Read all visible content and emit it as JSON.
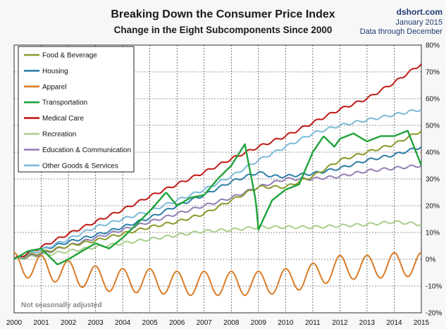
{
  "chart_data": {
    "type": "line",
    "title": "Breaking Down the Consumer Price Index",
    "subtitle": "Change in the Eight Subcomponents  Since 2000",
    "source": {
      "site": "dshort.com",
      "date": "January 2015",
      "note": "Data through December"
    },
    "annotation": "Not seasonally adjusted",
    "xlabel": "",
    "ylabel": "",
    "x_ticks": [
      "2000",
      "2001",
      "2002",
      "2003",
      "2004",
      "2005",
      "2006",
      "2007",
      "2008",
      "2009",
      "2010",
      "2011",
      "2012",
      "2013",
      "2014",
      "2015"
    ],
    "y_ticks": [
      "80%",
      "70%",
      "60%",
      "50%",
      "40%",
      "30%",
      "20%",
      "10%",
      "0%",
      "-10%",
      "-20%"
    ],
    "ylim": [
      -20,
      80
    ],
    "xlim": [
      2000,
      2015
    ],
    "grid": true,
    "legend_position": "top-left",
    "series": [
      {
        "name": "Food & Beverage",
        "color": "#8a9a2a",
        "points": [
          [
            2000,
            0
          ],
          [
            2001,
            2.5
          ],
          [
            2002,
            5
          ],
          [
            2003,
            7
          ],
          [
            2004,
            9.5
          ],
          [
            2005,
            12
          ],
          [
            2006,
            14
          ],
          [
            2007,
            17
          ],
          [
            2008,
            22
          ],
          [
            2009,
            27
          ],
          [
            2009.5,
            27
          ],
          [
            2010,
            27
          ],
          [
            2011,
            31
          ],
          [
            2012,
            37
          ],
          [
            2013,
            40
          ],
          [
            2014,
            43
          ],
          [
            2015,
            48
          ]
        ]
      },
      {
        "name": "Housing",
        "color": "#2c7fa8",
        "points": [
          [
            2000,
            0
          ],
          [
            2001,
            3.5
          ],
          [
            2002,
            6.5
          ],
          [
            2003,
            9
          ],
          [
            2004,
            12
          ],
          [
            2005,
            15.5
          ],
          [
            2006,
            20
          ],
          [
            2007,
            24
          ],
          [
            2008,
            29
          ],
          [
            2009,
            32.5
          ],
          [
            2009.5,
            31
          ],
          [
            2010,
            31
          ],
          [
            2011,
            32
          ],
          [
            2012,
            34
          ],
          [
            2013,
            37
          ],
          [
            2014,
            39
          ],
          [
            2015,
            42
          ]
        ]
      },
      {
        "name": "Apparel",
        "color": "#d97b27",
        "oscillation": "seasonal",
        "points": [
          [
            2000,
            -2
          ],
          [
            2001,
            -3
          ],
          [
            2002,
            -5
          ],
          [
            2003,
            -7
          ],
          [
            2004,
            -8
          ],
          [
            2005,
            -8
          ],
          [
            2006,
            -9
          ],
          [
            2007,
            -9
          ],
          [
            2008,
            -9
          ],
          [
            2009,
            -9
          ],
          [
            2010,
            -8
          ],
          [
            2011,
            -6
          ],
          [
            2012,
            -3
          ],
          [
            2013,
            -3
          ],
          [
            2014,
            -2
          ],
          [
            2015,
            -2
          ]
        ]
      },
      {
        "name": "Transportation",
        "color": "#1fa33a",
        "points": [
          [
            2000,
            0
          ],
          [
            2000.5,
            3
          ],
          [
            2001,
            4
          ],
          [
            2001.6,
            -2
          ],
          [
            2002,
            0
          ],
          [
            2002.5,
            3
          ],
          [
            2003,
            6
          ],
          [
            2003.5,
            4
          ],
          [
            2004,
            8
          ],
          [
            2004.5,
            13
          ],
          [
            2005,
            18
          ],
          [
            2005.6,
            25
          ],
          [
            2006,
            20
          ],
          [
            2006.5,
            23
          ],
          [
            2007,
            24
          ],
          [
            2007.5,
            30
          ],
          [
            2008,
            35
          ],
          [
            2008.5,
            43
          ],
          [
            2008.9,
            22
          ],
          [
            2009,
            11
          ],
          [
            2009.5,
            22
          ],
          [
            2010,
            26
          ],
          [
            2010.5,
            28
          ],
          [
            2011,
            40
          ],
          [
            2011.4,
            46
          ],
          [
            2011.8,
            42
          ],
          [
            2012,
            45
          ],
          [
            2012.5,
            47
          ],
          [
            2013,
            44
          ],
          [
            2013.5,
            46
          ],
          [
            2014,
            46
          ],
          [
            2014.5,
            48
          ],
          [
            2015,
            35
          ]
        ]
      },
      {
        "name": "Medical Care",
        "color": "#c01a16",
        "points": [
          [
            2000,
            0
          ],
          [
            2001,
            4.5
          ],
          [
            2002,
            9.5
          ],
          [
            2003,
            14
          ],
          [
            2004,
            18.5
          ],
          [
            2005,
            23.5
          ],
          [
            2006,
            28
          ],
          [
            2007,
            32.5
          ],
          [
            2008,
            37.5
          ],
          [
            2009,
            42
          ],
          [
            2010,
            46
          ],
          [
            2011,
            51
          ],
          [
            2012,
            56
          ],
          [
            2013,
            60
          ],
          [
            2014,
            66
          ],
          [
            2015,
            73
          ]
        ]
      },
      {
        "name": "Recreation",
        "color": "#a8cf8b",
        "points": [
          [
            2000,
            0
          ],
          [
            2001,
            1.5
          ],
          [
            2002,
            3
          ],
          [
            2003,
            4.5
          ],
          [
            2004,
            6
          ],
          [
            2005,
            7.5
          ],
          [
            2006,
            9
          ],
          [
            2007,
            10.5
          ],
          [
            2008,
            11
          ],
          [
            2009,
            12
          ],
          [
            2010,
            12
          ],
          [
            2011,
            12
          ],
          [
            2012,
            12.5
          ],
          [
            2013,
            13
          ],
          [
            2014,
            14
          ],
          [
            2015,
            13
          ]
        ]
      },
      {
        "name": "Education & Communication",
        "color": "#9580b5",
        "points": [
          [
            2000,
            0
          ],
          [
            2001,
            2
          ],
          [
            2002,
            5
          ],
          [
            2003,
            8
          ],
          [
            2004,
            11
          ],
          [
            2005,
            14
          ],
          [
            2006,
            17
          ],
          [
            2007,
            20
          ],
          [
            2008,
            23
          ],
          [
            2009,
            27
          ],
          [
            2010,
            30
          ],
          [
            2011,
            30
          ],
          [
            2012,
            31
          ],
          [
            2013,
            33
          ],
          [
            2014,
            34
          ],
          [
            2015,
            35
          ]
        ]
      },
      {
        "name": "Other Goods & Services",
        "color": "#7bbad8",
        "points": [
          [
            2000,
            0
          ],
          [
            2001,
            3.5
          ],
          [
            2002,
            7.5
          ],
          [
            2003,
            12
          ],
          [
            2004,
            15
          ],
          [
            2005,
            18
          ],
          [
            2006,
            22
          ],
          [
            2007,
            26
          ],
          [
            2008,
            31
          ],
          [
            2009,
            37
          ],
          [
            2010,
            42
          ],
          [
            2011,
            47
          ],
          [
            2012,
            50
          ],
          [
            2013,
            52
          ],
          [
            2014,
            54
          ],
          [
            2015,
            56
          ]
        ]
      }
    ]
  }
}
